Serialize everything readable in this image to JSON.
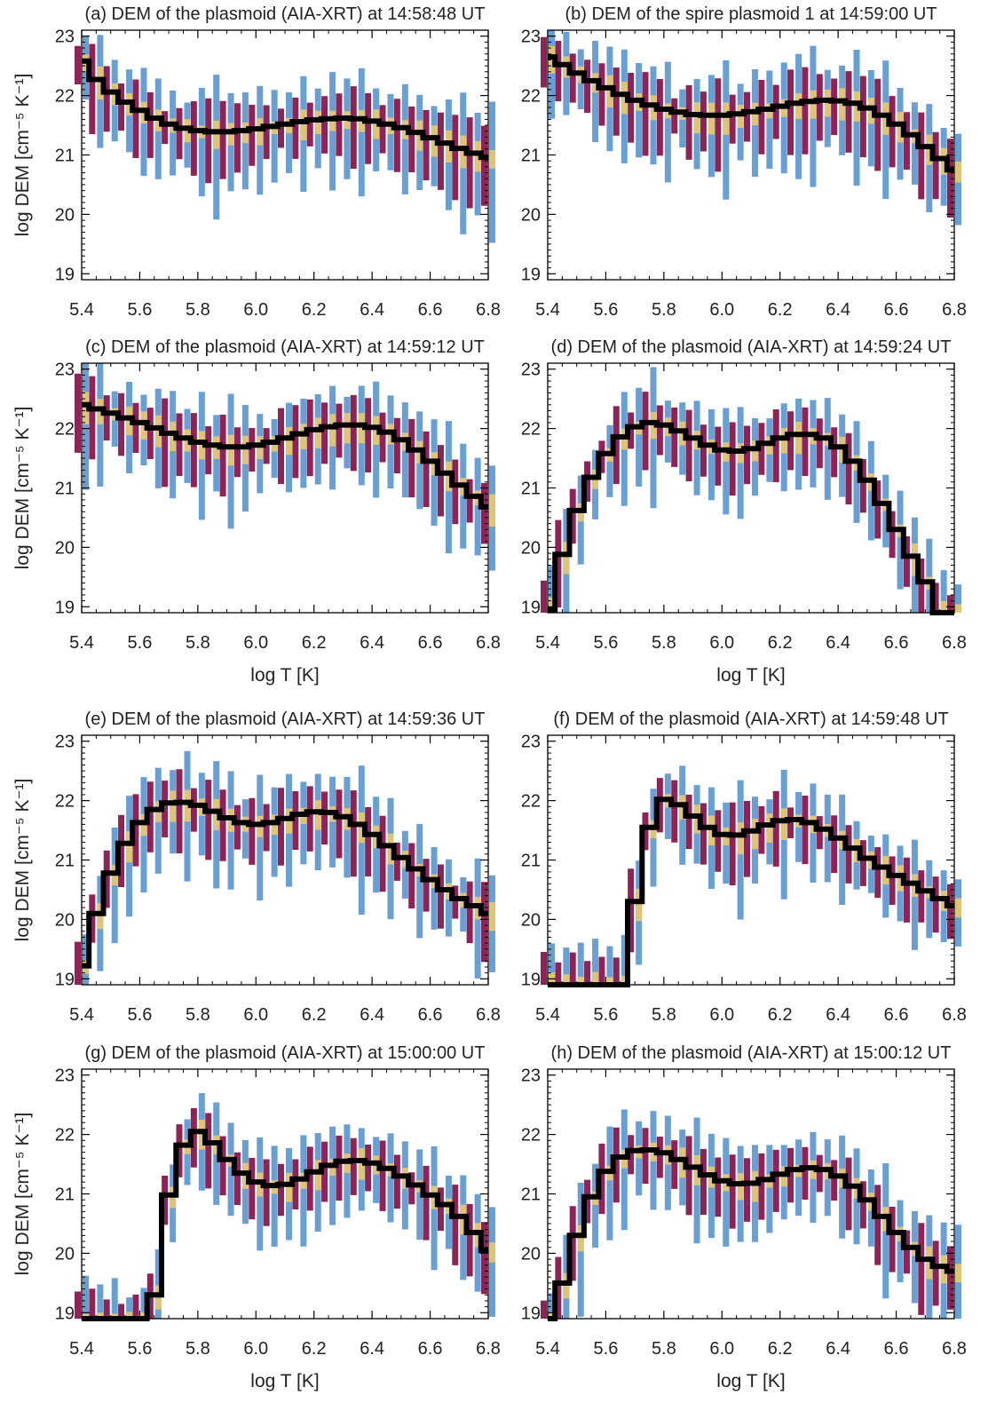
{
  "figure": {
    "x_tick_labels": [
      "5.4",
      "5.6",
      "5.8",
      "6.0",
      "6.2",
      "6.4",
      "6.6",
      "6.8"
    ],
    "y_tick_labels": [
      "19",
      "20",
      "21",
      "22",
      "23"
    ],
    "y_label": "log DEM [cm⁻⁵ K⁻¹]",
    "x_label": "log T [K]",
    "colors": {
      "curve": "#000000",
      "band_inner": "#dcc57a",
      "band_middle": "#8e2357",
      "band_outer": "#6a9fd4"
    }
  },
  "chart_data": [
    {
      "type": "bar",
      "title": "(a) DEM of the plasmoid (AIA-XRT) at 14:58:48 UT",
      "xlabel": "log T [K]",
      "ylabel": "log DEM [cm⁻⁵ K⁻¹]",
      "xlim": [
        5.4,
        6.8
      ],
      "ylim": [
        18.9,
        23.1
      ],
      "grid": false,
      "x_start": 5.4,
      "x_step": 0.05,
      "dem": [
        22.58,
        22.27,
        22.06,
        21.89,
        21.75,
        21.62,
        21.52,
        21.45,
        21.41,
        21.39,
        21.39,
        21.41,
        21.44,
        21.48,
        21.52,
        21.56,
        21.59,
        21.61,
        21.62,
        21.61,
        21.57,
        21.52,
        21.46,
        21.38,
        21.29,
        21.2,
        21.11,
        21.03,
        20.96
      ]
    },
    {
      "type": "bar",
      "title": "(b) DEM of the spire plasmoid 1 at 14:59:00 UT",
      "xlabel": "log T [K]",
      "ylabel": "log DEM [cm⁻⁵ K⁻¹]",
      "xlim": [
        5.4,
        6.8
      ],
      "ylim": [
        18.9,
        23.1
      ],
      "grid": false,
      "x_start": 5.4,
      "x_step": 0.05,
      "dem": [
        22.65,
        22.52,
        22.38,
        22.25,
        22.13,
        22.02,
        21.92,
        21.84,
        21.77,
        21.72,
        21.68,
        21.67,
        21.67,
        21.69,
        21.73,
        21.77,
        21.82,
        21.87,
        21.9,
        21.92,
        21.91,
        21.87,
        21.79,
        21.67,
        21.52,
        21.34,
        21.14,
        20.94,
        20.75
      ]
    },
    {
      "type": "bar",
      "title": "(c) DEM of the plasmoid (AIA-XRT) at 14:59:12 UT",
      "xlabel": "log T [K]",
      "ylabel": "log DEM [cm⁻⁵ K⁻¹]",
      "xlim": [
        5.4,
        6.8
      ],
      "ylim": [
        18.9,
        23.1
      ],
      "grid": false,
      "x_start": 5.4,
      "x_step": 0.05,
      "dem": [
        22.4,
        22.33,
        22.26,
        22.18,
        22.1,
        22.01,
        21.92,
        21.84,
        21.77,
        21.72,
        21.69,
        21.69,
        21.72,
        21.77,
        21.84,
        21.91,
        21.98,
        22.03,
        22.06,
        22.06,
        22.02,
        21.94,
        21.81,
        21.64,
        21.45,
        21.25,
        21.05,
        20.86,
        20.68
      ]
    },
    {
      "type": "bar",
      "title": "(d) DEM of the plasmoid (AIA-XRT) at 14:59:24 UT",
      "xlabel": "log T [K]",
      "ylabel": "log DEM [cm⁻⁵ K⁻¹]",
      "xlim": [
        5.4,
        6.8
      ],
      "ylim": [
        18.9,
        23.1
      ],
      "grid": false,
      "x_start": 5.4,
      "x_step": 0.05,
      "dem": [
        18.95,
        19.88,
        20.62,
        21.18,
        21.58,
        21.86,
        22.03,
        22.1,
        22.06,
        21.96,
        21.84,
        21.72,
        21.64,
        21.62,
        21.66,
        21.75,
        21.84,
        21.9,
        21.9,
        21.84,
        21.69,
        21.45,
        21.13,
        20.74,
        20.3,
        19.85,
        19.42,
        18.9,
        18.9
      ]
    },
    {
      "type": "bar",
      "title": "(e) DEM of the plasmoid (AIA-XRT) at 14:59:36 UT",
      "xlabel": "log T [K]",
      "ylabel": "log DEM [cm⁻⁵ K⁻¹]",
      "xlim": [
        5.4,
        6.8
      ],
      "ylim": [
        18.9,
        23.1
      ],
      "grid": false,
      "x_start": 5.4,
      "x_step": 0.05,
      "dem": [
        19.22,
        20.1,
        20.78,
        21.28,
        21.63,
        21.85,
        21.96,
        21.97,
        21.92,
        21.82,
        21.71,
        21.63,
        21.6,
        21.63,
        21.7,
        21.77,
        21.81,
        21.8,
        21.73,
        21.6,
        21.43,
        21.24,
        21.04,
        20.85,
        20.67,
        20.5,
        20.35,
        20.23,
        20.1
      ]
    },
    {
      "type": "bar",
      "title": "(f) DEM of the plasmoid (AIA-XRT) at 14:59:48 UT",
      "xlabel": "log T [K]",
      "ylabel": "log DEM [cm⁻⁵ K⁻¹]",
      "xlim": [
        5.4,
        6.8
      ],
      "ylim": [
        18.9,
        23.1
      ],
      "grid": false,
      "x_start": 5.4,
      "x_step": 0.05,
      "dem": [
        18.9,
        18.9,
        18.9,
        18.9,
        18.9,
        18.9,
        20.3,
        21.55,
        22.02,
        21.93,
        21.74,
        21.55,
        21.43,
        21.42,
        21.49,
        21.59,
        21.66,
        21.68,
        21.63,
        21.52,
        21.37,
        21.2,
        21.03,
        20.88,
        20.74,
        20.61,
        20.48,
        20.35,
        20.23
      ]
    },
    {
      "type": "bar",
      "title": "(g) DEM of the plasmoid (AIA-XRT) at 15:00:00 UT",
      "xlabel": "log T [K]",
      "ylabel": "log DEM [cm⁻⁵ K⁻¹]",
      "xlim": [
        5.4,
        6.8
      ],
      "ylim": [
        18.9,
        23.1
      ],
      "grid": false,
      "x_start": 5.4,
      "x_step": 0.05,
      "dem": [
        18.9,
        18.9,
        18.9,
        18.9,
        18.9,
        19.3,
        20.98,
        21.82,
        22.05,
        21.86,
        21.58,
        21.35,
        21.2,
        21.14,
        21.16,
        21.25,
        21.37,
        21.48,
        21.55,
        21.56,
        21.52,
        21.43,
        21.3,
        21.15,
        20.98,
        20.82,
        20.62,
        20.35,
        20.05
      ]
    },
    {
      "type": "bar",
      "title": "(h) DEM of the plasmoid (AIA-XRT) at 15:00:12 UT",
      "xlabel": "log T [K]",
      "ylabel": "log DEM [cm⁻⁵ K⁻¹]",
      "xlim": [
        5.4,
        6.8
      ],
      "ylim": [
        18.9,
        23.1
      ],
      "grid": false,
      "x_start": 5.4,
      "x_step": 0.05,
      "dem": [
        18.9,
        19.5,
        20.3,
        20.95,
        21.38,
        21.62,
        21.73,
        21.74,
        21.69,
        21.58,
        21.45,
        21.32,
        21.22,
        21.17,
        21.18,
        21.24,
        21.33,
        21.41,
        21.44,
        21.41,
        21.3,
        21.13,
        20.9,
        20.62,
        20.35,
        20.1,
        19.9,
        19.78,
        19.7
      ]
    }
  ]
}
